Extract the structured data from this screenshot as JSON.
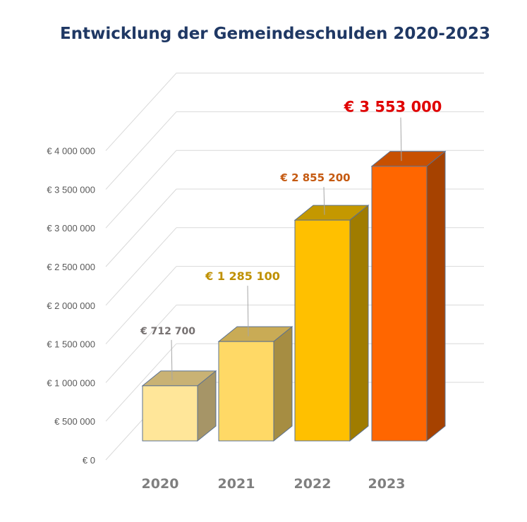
{
  "chart_data": {
    "type": "bar",
    "title": "Entwicklung der Gemeindeschulden 2020-2023",
    "categories": [
      "2020",
      "2021",
      "2022",
      "2023"
    ],
    "values": [
      712700,
      1285100,
      2855200,
      3553000
    ],
    "data_labels": [
      "€ 712 700",
      "€ 1 285 100",
      "€ 2 855 200",
      "€ 3 553 000"
    ],
    "ylim": [
      0,
      4000000
    ],
    "yticks": [
      "€ 0",
      "€ 500 000",
      "€ 1 000 000",
      "€ 1 500 000",
      "€ 2 000 000",
      "€ 2 500 000",
      "€ 3 000 000",
      "€ 3 500 000",
      "€ 4 000 000"
    ],
    "xlabel": "",
    "ylabel": "",
    "grid": true,
    "legend": "none",
    "three_d": true,
    "colors": {
      "bar_fronts": [
        "#ffe699",
        "#ffd966",
        "#ffc000",
        "#ff6600"
      ],
      "bar_sides": [
        "#a69567",
        "#a68d42",
        "#a07c00",
        "#a64200"
      ],
      "bar_tops": [
        "#c9b274",
        "#c9ab55",
        "#c49800",
        "#c85000"
      ],
      "data_label_colors": [
        "#767171",
        "#bf9000",
        "#c55a11",
        "#e00000"
      ],
      "gridline": "#d9d9d9",
      "title": "#1f3864"
    }
  }
}
